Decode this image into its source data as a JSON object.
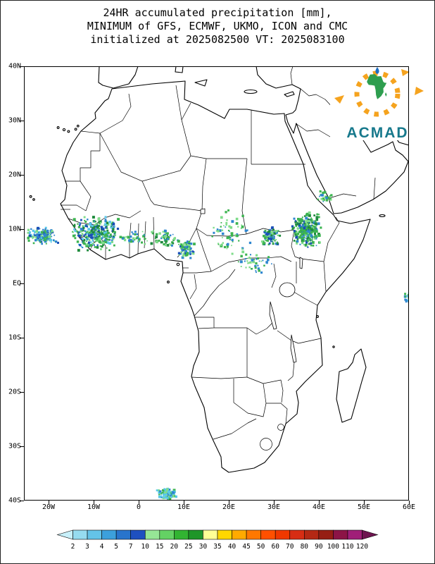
{
  "title": {
    "line1": "24HR accumulated precipitation [mm],",
    "line2": "MINIMUM of GFS, ECMWF, UKMO, ICON and CMC",
    "line3": "initialized at 2025082500 VT: 2025083100"
  },
  "logo": {
    "name": "ACMAD",
    "text_color": "#17798c",
    "africa_color": "#2e9e4f",
    "ray_color": "#f5a31e",
    "drop_color": "#1f6fc4"
  },
  "map": {
    "y_ticks": [
      "40N",
      "30N",
      "20N",
      "10N",
      "EQ",
      "10S",
      "20S",
      "30S",
      "40S"
    ],
    "x_ticks": [
      "20W",
      "10W",
      "0",
      "10E",
      "20E",
      "30E",
      "40E",
      "50E",
      "60E"
    ]
  },
  "colorbar": {
    "values": [
      "2",
      "3",
      "4",
      "5",
      "7",
      "10",
      "15",
      "20",
      "25",
      "30",
      "35",
      "40",
      "45",
      "50",
      "60",
      "70",
      "80",
      "90",
      "100",
      "110",
      "120"
    ],
    "segment_colors": [
      "#c8f0fa",
      "#96dcf0",
      "#64c3e8",
      "#3ca0dc",
      "#2874cc",
      "#1e50c0",
      "#96e696",
      "#64d264",
      "#32b432",
      "#1e9628",
      "#ffff96",
      "#ffd700",
      "#ffaa00",
      "#ff7800",
      "#ff5000",
      "#f03800",
      "#d72d14",
      "#b42814",
      "#961e14",
      "#8c1446",
      "#a01e78",
      "#6e1450"
    ]
  },
  "chart_data": {
    "type": "map",
    "title": "24HR accumulated precipitation [mm], MINIMUM of GFS, ECMWF, UKMO, ICON and CMC",
    "statistic": "MINIMUM",
    "models": [
      "GFS",
      "ECMWF",
      "UKMO",
      "ICON",
      "CMC"
    ],
    "initialized": "2025082500",
    "valid_time": "2025083100",
    "units": "mm",
    "lon_range_deg": [
      -25.5,
      60
    ],
    "lat_range_deg": [
      -40,
      40
    ],
    "colorbar_mm": [
      2,
      3,
      4,
      5,
      7,
      10,
      15,
      20,
      25,
      30,
      35,
      40,
      45,
      50,
      60,
      70,
      80,
      90,
      100,
      110,
      120
    ],
    "precip_clusters": [
      {
        "name": "atlantic-west-of-senegal",
        "lon": -21.3,
        "lat": 8.8,
        "w": 7.5,
        "h": 3.4,
        "n": 150,
        "seed": 11,
        "palette": [
          "#2e86d0",
          "#2e86d0",
          "#1a4fb8",
          "#58c8e8",
          "#3cb450",
          "#7fdc8a"
        ]
      },
      {
        "name": "west-africa-coast-guinea",
        "lon": -9.5,
        "lat": 9.2,
        "w": 11,
        "h": 6.5,
        "n": 330,
        "seed": 22,
        "palette": [
          "#3cb450",
          "#3cb450",
          "#2e86d0",
          "#1a4fb8",
          "#7fdc8a",
          "#1e8a3c",
          "#58c8e8"
        ]
      },
      {
        "name": "ghana-benin-scatter",
        "lon": -1,
        "lat": 8.3,
        "w": 7,
        "h": 3,
        "n": 40,
        "seed": 33,
        "palette": [
          "#3cb450",
          "#7fdc8a",
          "#2e86d0"
        ]
      },
      {
        "name": "nigeria",
        "lon": 5.8,
        "lat": 8.2,
        "w": 7,
        "h": 3.2,
        "n": 60,
        "seed": 44,
        "palette": [
          "#3cb450",
          "#7fdc8a",
          "#2e86d0",
          "#1e8a3c"
        ]
      },
      {
        "name": "cameroon",
        "lon": 10.6,
        "lat": 6.3,
        "w": 4,
        "h": 3.5,
        "n": 80,
        "seed": 55,
        "palette": [
          "#3cb450",
          "#2e86d0",
          "#1a4fb8",
          "#7fdc8a"
        ]
      },
      {
        "name": "chad-car-scatter",
        "lon": 20.5,
        "lat": 9.5,
        "w": 9,
        "h": 9,
        "n": 70,
        "seed": 66,
        "palette": [
          "#3cb450",
          "#7fdc8a",
          "#2e86d0"
        ]
      },
      {
        "name": "south-sudan",
        "lon": 29.3,
        "lat": 8.6,
        "w": 4.5,
        "h": 3.5,
        "n": 80,
        "seed": 77,
        "palette": [
          "#3cb450",
          "#2e86d0",
          "#1a4fb8",
          "#7fdc8a",
          "#1e8a3c"
        ]
      },
      {
        "name": "drc-uganda-scatter",
        "lon": 25.5,
        "lat": 3.8,
        "w": 9,
        "h": 4.5,
        "n": 45,
        "seed": 88,
        "palette": [
          "#3cb450",
          "#7fdc8a",
          "#2e86d0"
        ]
      },
      {
        "name": "ethiopia",
        "lon": 37.2,
        "lat": 9.8,
        "w": 7,
        "h": 6.5,
        "n": 280,
        "seed": 99,
        "palette": [
          "#3cb450",
          "#3cb450",
          "#1e8a3c",
          "#7fdc8a",
          "#2e86d0",
          "#1a4fb8"
        ]
      },
      {
        "name": "red-sea-coast",
        "lon": 41.2,
        "lat": 16,
        "w": 3.4,
        "h": 2.4,
        "n": 22,
        "seed": 111,
        "palette": [
          "#3cb450",
          "#2e86d0",
          "#7fdc8a"
        ]
      },
      {
        "name": "south-atlantic-storm",
        "lon": 6.3,
        "lat": -38.8,
        "w": 4.6,
        "h": 2.2,
        "n": 110,
        "seed": 122,
        "palette": [
          "#58c8e8",
          "#58c8e8",
          "#2e86d0",
          "#3cb450",
          "#7fdc8a"
        ]
      },
      {
        "name": "indian-ocean-east-edge",
        "lon": 59.6,
        "lat": -2.6,
        "w": 1.8,
        "h": 2.4,
        "n": 16,
        "seed": 133,
        "palette": [
          "#2e86d0",
          "#58c8e8",
          "#3cb450"
        ]
      }
    ]
  }
}
